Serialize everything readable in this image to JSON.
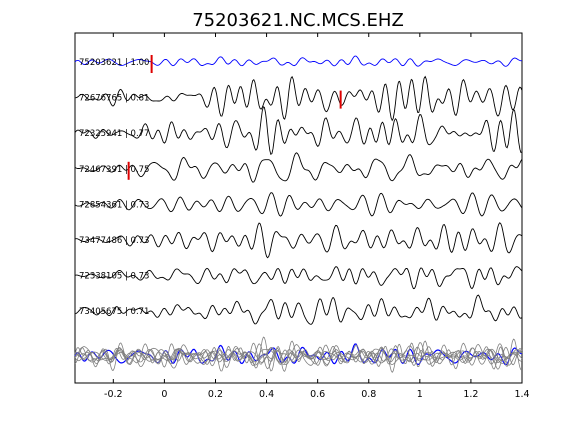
{
  "chart_data": {
    "type": "line",
    "title": "75203621.NC.MCS.EHZ",
    "xlabel": "",
    "ylabel": "",
    "xlim": [
      -0.35,
      1.4
    ],
    "xticks": [
      -0.2,
      0,
      0.2,
      0.4,
      0.6,
      0.8,
      1,
      1.2,
      1.4
    ],
    "xtick_labels": [
      "-0.2",
      "0",
      "0.2",
      "0.4",
      "0.6",
      "0.8",
      "1",
      "1.2",
      "1.4"
    ],
    "grid": false,
    "legend": "none",
    "colors": {
      "reference": "#0000ff",
      "match": "#000000",
      "stack": "#808080",
      "pick": "#dd0000"
    },
    "series": [
      {
        "label": "75203621 | 1.00",
        "pick_x": -0.05,
        "seed": 11
      },
      {
        "label": "72676765 | 0.81",
        "pick_x": 0.69,
        "seed": 23
      },
      {
        "label": "72325941 | 0.77",
        "pick_x": null,
        "seed": 37
      },
      {
        "label": "72467391 | 0.75",
        "pick_x": -0.14,
        "seed": 41
      },
      {
        "label": "72854361 | 0.73",
        "pick_x": null,
        "seed": 53
      },
      {
        "label": "73477486 | 0.73",
        "pick_x": null,
        "seed": 67
      },
      {
        "label": "72338105 | 0.73",
        "pick_x": null,
        "seed": 71
      },
      {
        "label": "73405675 | 0.71",
        "pick_x": null,
        "seed": 83
      }
    ]
  }
}
